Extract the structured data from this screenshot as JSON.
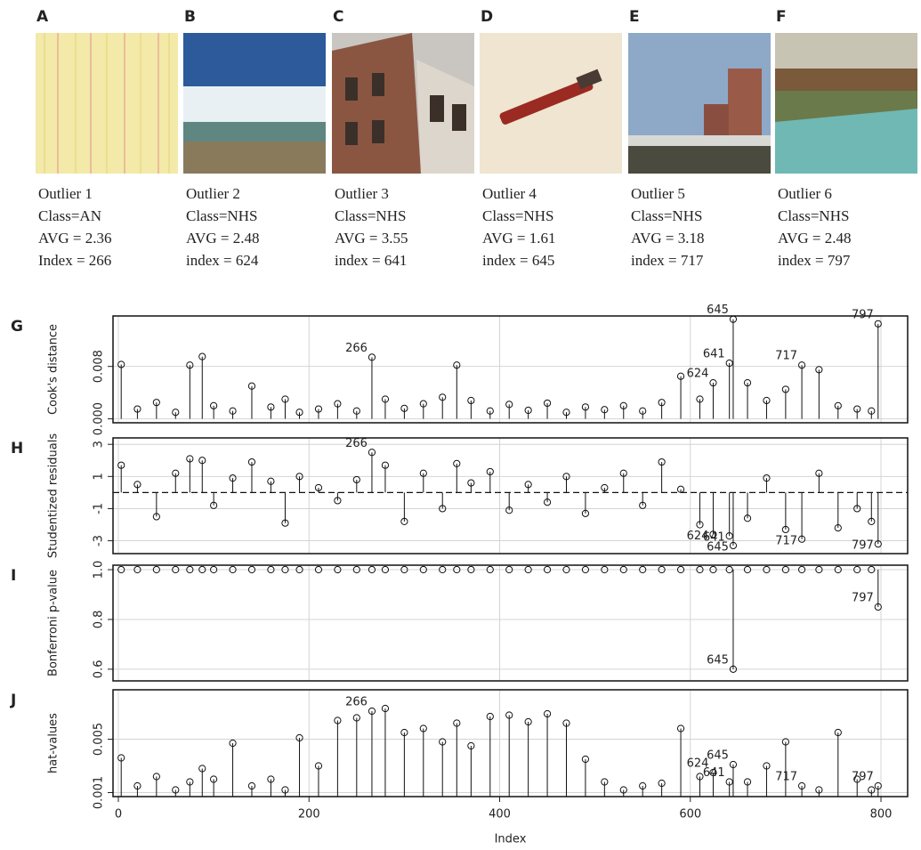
{
  "images": [
    {
      "letter": "A",
      "caption": [
        "Outlier 1",
        "Class=AN",
        "AVG = 2.36",
        "Index = 266"
      ]
    },
    {
      "letter": "B",
      "caption": [
        "Outlier 2",
        "Class=NHS",
        "AVG = 2.48",
        "index = 624"
      ]
    },
    {
      "letter": "C",
      "caption": [
        "Outlier 3",
        "Class=NHS",
        "AVG = 3.55",
        "index = 641"
      ]
    },
    {
      "letter": "D",
      "caption": [
        "Outlier 4",
        "Class=NHS",
        "AVG = 1.61",
        "index = 645"
      ]
    },
    {
      "letter": "E",
      "caption": [
        "Outlier 5",
        "Class=NHS",
        "AVG = 3.18",
        "index = 717"
      ]
    },
    {
      "letter": "F",
      "caption": [
        "Outlier 6",
        "Class=NHS",
        "AVG = 2.48",
        "index = 797"
      ]
    }
  ],
  "chart_data": [
    {
      "type": "stem",
      "panel": "G",
      "ylabel": "Cook's distance",
      "grid": true,
      "xlim": [
        -5.6,
        828
      ],
      "ylim": [
        -0.0006,
        0.0157
      ],
      "yticks": [
        {
          "value": 0,
          "label": "0.000"
        },
        {
          "value": 0.008,
          "label": "0.008"
        }
      ],
      "x": [
        3,
        20,
        40,
        60,
        75,
        88,
        100,
        120,
        140,
        160,
        175,
        190,
        210,
        230,
        250,
        266,
        280,
        300,
        320,
        340,
        355,
        370,
        390,
        410,
        430,
        450,
        470,
        490,
        510,
        530,
        550,
        570,
        590,
        610,
        624,
        641,
        645,
        660,
        680,
        700,
        717,
        735,
        755,
        775,
        790,
        797
      ],
      "values": [
        0.0083,
        0.0015,
        0.0025,
        0.001,
        0.0082,
        0.0095,
        0.002,
        0.0012,
        0.005,
        0.0018,
        0.003,
        0.001,
        0.0015,
        0.0023,
        0.0012,
        0.0094,
        0.003,
        0.0016,
        0.0023,
        0.0033,
        0.0082,
        0.0028,
        0.0012,
        0.0022,
        0.0013,
        0.0024,
        0.001,
        0.0018,
        0.0014,
        0.002,
        0.0012,
        0.0025,
        0.0065,
        0.003,
        0.0055,
        0.0085,
        0.0152,
        0.0055,
        0.0028,
        0.0045,
        0.0082,
        0.0075,
        0.002,
        0.0015,
        0.0012,
        0.0145
      ],
      "annotations": [
        {
          "text": "266",
          "x": 266
        },
        {
          "text": "624",
          "x": 624
        },
        {
          "text": "641",
          "x": 641
        },
        {
          "text": "645",
          "x": 645
        },
        {
          "text": "717",
          "x": 717
        },
        {
          "text": "797",
          "x": 797
        }
      ]
    },
    {
      "type": "stem",
      "panel": "H",
      "ylabel": "Studentized residuals",
      "grid": true,
      "hline": 0,
      "xlim": [
        -5.6,
        828
      ],
      "ylim": [
        -3.8,
        3.4
      ],
      "yticks": [
        -3,
        -1,
        1,
        3
      ],
      "x": [
        3,
        20,
        40,
        60,
        75,
        88,
        100,
        120,
        140,
        160,
        175,
        190,
        210,
        230,
        250,
        266,
        280,
        300,
        320,
        340,
        355,
        370,
        390,
        410,
        430,
        450,
        470,
        490,
        510,
        530,
        550,
        570,
        590,
        610,
        624,
        641,
        645,
        660,
        680,
        700,
        717,
        735,
        755,
        775,
        790,
        797
      ],
      "values": [
        1.7,
        0.5,
        -1.5,
        1.2,
        2.1,
        2.0,
        -0.8,
        0.9,
        1.9,
        0.7,
        -1.9,
        1.0,
        0.3,
        -0.5,
        0.8,
        2.5,
        1.7,
        -1.8,
        1.2,
        -1.0,
        1.8,
        0.6,
        1.3,
        -1.1,
        0.5,
        -0.6,
        1.0,
        -1.3,
        0.3,
        1.2,
        -0.8,
        1.9,
        0.2,
        -2.0,
        -2.6,
        -2.7,
        -3.3,
        -1.6,
        0.9,
        -2.3,
        -2.9,
        1.2,
        -2.2,
        -1.0,
        -1.8,
        -3.2
      ],
      "annotations": [
        {
          "text": "266",
          "x": 266
        },
        {
          "text": "624",
          "x": 624
        },
        {
          "text": "641",
          "x": 641
        },
        {
          "text": "645",
          "x": 645
        },
        {
          "text": "717",
          "x": 717
        },
        {
          "text": "797",
          "x": 797
        }
      ]
    },
    {
      "type": "stem",
      "panel": "I",
      "ylabel": "Bonferroni p-value",
      "grid": true,
      "xlim": [
        -5.6,
        828
      ],
      "ylim": [
        0.553,
        1.018
      ],
      "yticks": [
        0.6,
        0.8,
        {
          "value": 1,
          "label": "1.0"
        }
      ],
      "x": [
        3,
        20,
        40,
        60,
        75,
        88,
        100,
        120,
        140,
        160,
        175,
        190,
        210,
        230,
        250,
        266,
        280,
        300,
        320,
        340,
        355,
        370,
        390,
        410,
        430,
        450,
        470,
        490,
        510,
        530,
        550,
        570,
        590,
        610,
        624,
        641,
        645,
        660,
        680,
        700,
        717,
        735,
        755,
        775,
        790,
        797
      ],
      "values": [
        1,
        1,
        1,
        1,
        1,
        1,
        1,
        1,
        1,
        1,
        1,
        1,
        1,
        1,
        1,
        1,
        1,
        1,
        1,
        1,
        1,
        1,
        1,
        1,
        1,
        1,
        1,
        1,
        1,
        1,
        1,
        1,
        1,
        1,
        1,
        1,
        0.6,
        1,
        1,
        1,
        1,
        1,
        1,
        1,
        1,
        0.85
      ],
      "annotations": [
        {
          "text": "645",
          "x": 645
        },
        {
          "text": "797",
          "x": 797
        }
      ]
    },
    {
      "type": "stem",
      "panel": "J",
      "ylabel": "hat-values",
      "xlabel": "Index",
      "grid": true,
      "xlim": [
        -5.6,
        828
      ],
      "ylim": [
        0.0007,
        0.0087
      ],
      "yticks": [
        0.001,
        0.005
      ],
      "xticks": [
        0,
        200,
        400,
        600,
        800
      ],
      "x": [
        3,
        20,
        40,
        60,
        75,
        88,
        100,
        120,
        140,
        160,
        175,
        190,
        210,
        230,
        250,
        266,
        280,
        300,
        320,
        340,
        355,
        370,
        390,
        410,
        430,
        450,
        470,
        490,
        510,
        530,
        550,
        570,
        590,
        610,
        624,
        641,
        645,
        660,
        680,
        700,
        717,
        735,
        755,
        775,
        790,
        797
      ],
      "values": [
        0.0036,
        0.0015,
        0.0022,
        0.0012,
        0.0018,
        0.0028,
        0.002,
        0.0047,
        0.0015,
        0.002,
        0.0012,
        0.0051,
        0.003,
        0.0064,
        0.0066,
        0.0071,
        0.0073,
        0.0055,
        0.0058,
        0.0048,
        0.0062,
        0.0045,
        0.0067,
        0.0068,
        0.0063,
        0.0069,
        0.0062,
        0.0035,
        0.0018,
        0.0012,
        0.0015,
        0.0017,
        0.0058,
        0.0022,
        0.0025,
        0.0018,
        0.0031,
        0.0018,
        0.003,
        0.0048,
        0.0015,
        0.0012,
        0.0055,
        0.002,
        0.0012,
        0.0015
      ],
      "annotations": [
        {
          "text": "266",
          "x": 266
        },
        {
          "text": "624",
          "x": 624
        },
        {
          "text": "641",
          "x": 641
        },
        {
          "text": "645",
          "x": 645
        },
        {
          "text": "717",
          "x": 717
        },
        {
          "text": "797",
          "x": 797
        }
      ]
    }
  ]
}
